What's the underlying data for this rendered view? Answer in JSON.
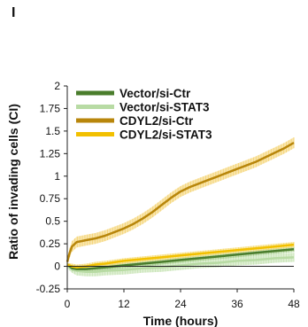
{
  "panel_label": "I",
  "chart_data": {
    "type": "line",
    "title": "",
    "xlabel": "Time (hours)",
    "ylabel": "Ratio of invading cells (CI)",
    "xlim": [
      0,
      48
    ],
    "ylim": [
      -0.25,
      2
    ],
    "xticks": [
      "0",
      "12",
      "24",
      "36",
      "48"
    ],
    "yticks": [
      "2",
      "1.75",
      "1.5",
      "1.25",
      "1",
      "0.75",
      "0.5",
      "0.25",
      "0",
      "-0.25"
    ],
    "grid": false,
    "legend_position": "top-right",
    "series": [
      {
        "name": "Vector/si-Ctr",
        "color": "#4a7d2c",
        "error_color": "#a8cf8e",
        "x": [
          0,
          1,
          2,
          4,
          6,
          8,
          12,
          16,
          20,
          24,
          28,
          32,
          36,
          40,
          44,
          48
        ],
        "y": [
          0.02,
          -0.02,
          -0.03,
          -0.03,
          -0.02,
          -0.01,
          0.01,
          0.03,
          0.05,
          0.07,
          0.09,
          0.11,
          0.13,
          0.15,
          0.17,
          0.19
        ],
        "err": [
          0.02,
          0.03,
          0.03,
          0.03,
          0.03,
          0.03,
          0.03,
          0.03,
          0.03,
          0.03,
          0.03,
          0.03,
          0.03,
          0.03,
          0.03,
          0.03
        ]
      },
      {
        "name": "Vector/si-STAT3",
        "color": "#b8dba4",
        "error_color": "#c9e5b8",
        "x": [
          0,
          1,
          2,
          4,
          6,
          8,
          12,
          16,
          20,
          24,
          28,
          32,
          36,
          40,
          44,
          48
        ],
        "y": [
          0.01,
          -0.03,
          -0.05,
          -0.06,
          -0.06,
          -0.05,
          -0.04,
          -0.02,
          -0.01,
          0.01,
          0.03,
          0.04,
          0.06,
          0.07,
          0.09,
          0.1
        ],
        "err": [
          0.03,
          0.04,
          0.05,
          0.05,
          0.05,
          0.05,
          0.05,
          0.05,
          0.05,
          0.05,
          0.05,
          0.05,
          0.05,
          0.05,
          0.05,
          0.05
        ]
      },
      {
        "name": "CDYL2/si-Ctr",
        "color": "#b8860b",
        "error_color": "#f5d67a",
        "x": [
          0,
          0.5,
          1,
          2,
          3,
          4,
          6,
          8,
          10,
          12,
          14,
          16,
          18,
          20,
          22,
          24,
          26,
          28,
          30,
          32,
          34,
          36,
          38,
          40,
          42,
          44,
          46,
          48
        ],
        "y": [
          0.05,
          0.15,
          0.22,
          0.27,
          0.28,
          0.29,
          0.31,
          0.34,
          0.38,
          0.42,
          0.47,
          0.53,
          0.6,
          0.68,
          0.76,
          0.83,
          0.88,
          0.92,
          0.96,
          1.0,
          1.04,
          1.08,
          1.12,
          1.16,
          1.21,
          1.26,
          1.31,
          1.37
        ],
        "err": [
          0.03,
          0.05,
          0.06,
          0.06,
          0.06,
          0.06,
          0.06,
          0.06,
          0.06,
          0.06,
          0.06,
          0.06,
          0.06,
          0.06,
          0.06,
          0.06,
          0.06,
          0.06,
          0.06,
          0.06,
          0.06,
          0.06,
          0.06,
          0.06,
          0.06,
          0.06,
          0.06,
          0.06
        ]
      },
      {
        "name": "CDYL2/si-STAT3",
        "color": "#f2c000",
        "error_color": "#f7dc74",
        "x": [
          0,
          1,
          2,
          4,
          6,
          8,
          12,
          16,
          20,
          24,
          28,
          32,
          36,
          40,
          44,
          48
        ],
        "y": [
          0.02,
          0.0,
          -0.01,
          0.0,
          0.02,
          0.03,
          0.06,
          0.08,
          0.1,
          0.12,
          0.14,
          0.16,
          0.18,
          0.2,
          0.22,
          0.24
        ],
        "err": [
          0.02,
          0.03,
          0.03,
          0.03,
          0.03,
          0.03,
          0.03,
          0.03,
          0.03,
          0.03,
          0.03,
          0.03,
          0.03,
          0.03,
          0.03,
          0.03
        ]
      }
    ]
  }
}
